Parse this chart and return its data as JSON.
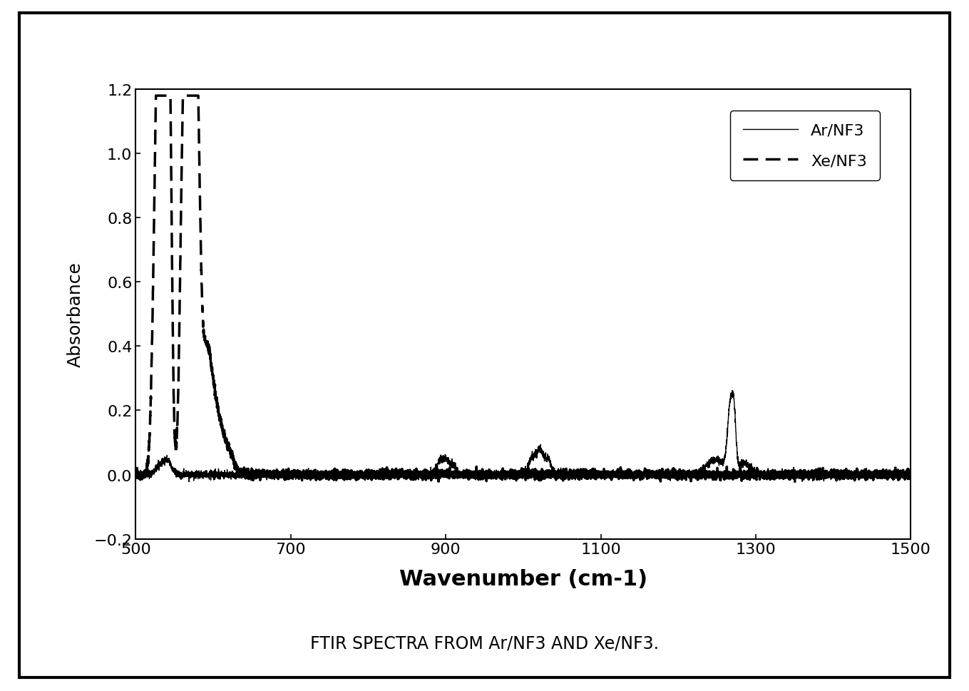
{
  "title": "FTIR SPECTRA FROM Ar/NF3 AND Xe/NF3.",
  "xlabel": "Wavenumber (cm-1)",
  "ylabel": "Absorbance",
  "xlim": [
    500,
    1500
  ],
  "ylim": [
    -0.2,
    1.2
  ],
  "yticks": [
    -0.2,
    0.0,
    0.2,
    0.4,
    0.6,
    0.8,
    1.0,
    1.2
  ],
  "xticks": [
    500,
    700,
    900,
    1100,
    1300,
    1500
  ],
  "legend_labels": [
    "Ar/NF3",
    "Xe/NF3"
  ],
  "background_color": "#ffffff",
  "line_color": "#000000"
}
